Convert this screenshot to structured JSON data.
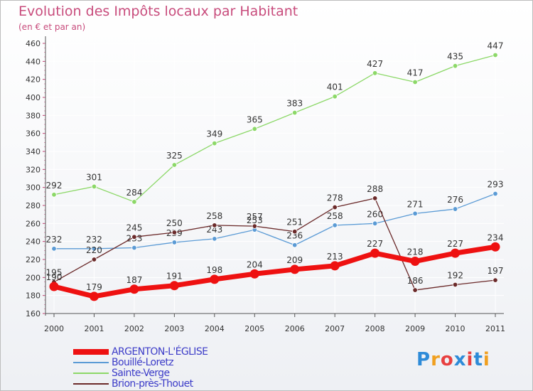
{
  "title": "Evolution des Impôts locaux par Habitant",
  "subtitle": "(en € et par an)",
  "logo": {
    "text": "Proxiti",
    "letter_colors": [
      "#2e8bd8",
      "#f0a020",
      "#e84040",
      "#2e8bd8",
      "#e84040",
      "#2e8bd8",
      "#f0a020"
    ]
  },
  "chart_data": {
    "type": "line",
    "x": [
      2000,
      2001,
      2002,
      2003,
      2004,
      2005,
      2006,
      2007,
      2008,
      2009,
      2010,
      2011
    ],
    "ylim": [
      160,
      460
    ],
    "yticks": [
      160,
      180,
      200,
      220,
      240,
      260,
      280,
      300,
      320,
      340,
      360,
      380,
      400,
      420,
      440,
      460
    ],
    "grid": true,
    "legend_position": "bottom-left",
    "series": [
      {
        "name": "Sainte-Verge",
        "color": "#8cd868",
        "values": [
          292,
          301,
          284,
          325,
          349,
          365,
          383,
          401,
          427,
          417,
          435,
          447
        ],
        "bold": false
      },
      {
        "name": "Bouillé-Loretz",
        "color": "#5b9bd5",
        "values": [
          232,
          232,
          233,
          239,
          243,
          253,
          236,
          258,
          260,
          271,
          276,
          293
        ],
        "bold": false
      },
      {
        "name": "Brion-près-Thouet",
        "color": "#6b2a2a",
        "values": [
          195,
          220,
          245,
          250,
          258,
          257,
          251,
          278,
          288,
          186,
          192,
          197
        ],
        "bold": false
      },
      {
        "name": "ARGENTON-L'ÉGLISE",
        "color": "#ee1111",
        "values": [
          190,
          179,
          187,
          191,
          198,
          204,
          209,
          213,
          227,
          218,
          227,
          234
        ],
        "bold": true
      }
    ],
    "legend_order": [
      "ARGENTON-L'ÉGLISE",
      "Bouillé-Loretz",
      "Sainte-Verge",
      "Brion-près-Thouet"
    ]
  }
}
